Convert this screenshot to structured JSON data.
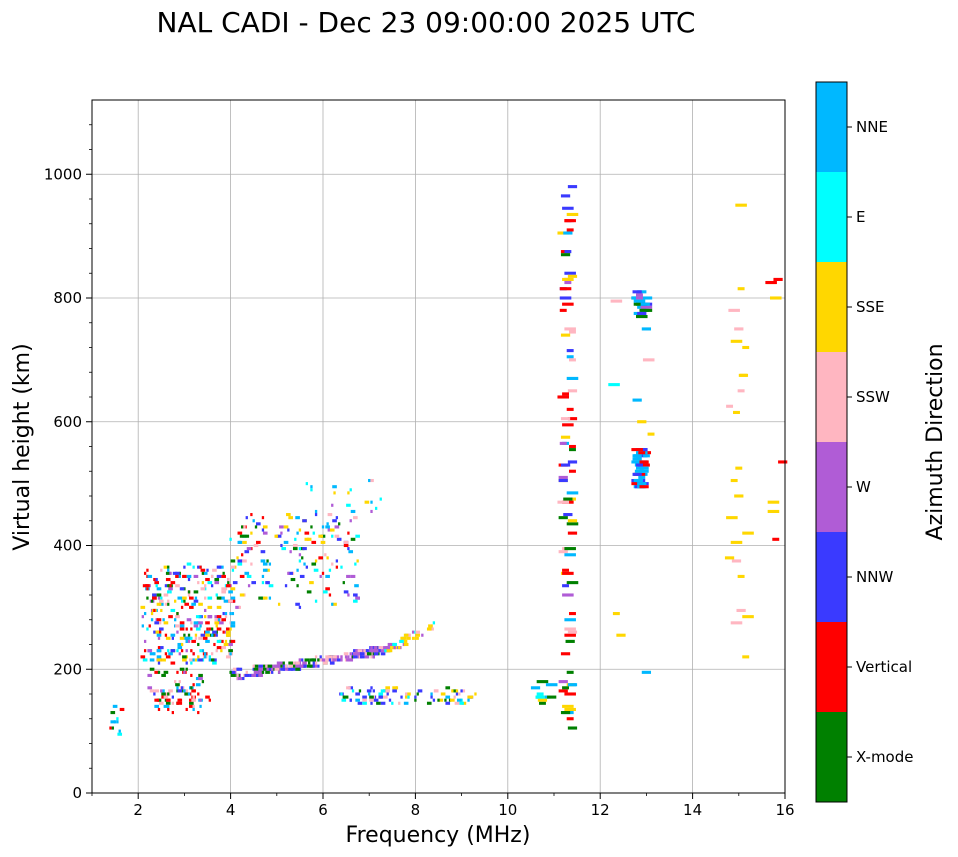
{
  "chart_data": {
    "type": "scatter",
    "title": "NAL CADI - Dec 23 09:00:00 2025 UTC",
    "xlabel": "Frequency (MHz)",
    "ylabel": "Virtual height (km)",
    "xlim": [
      1,
      16
    ],
    "ylim": [
      0,
      1120
    ],
    "xticks": [
      2,
      4,
      6,
      8,
      10,
      12,
      14,
      16
    ],
    "yticks": [
      0,
      200,
      400,
      600,
      800,
      1000
    ],
    "grid": true,
    "colorbar": {
      "label": "Azimuth Direction",
      "categories": [
        "X-mode",
        "Vertical",
        "NNW",
        "W",
        "SSW",
        "SSE",
        "E",
        "NNE"
      ],
      "colors": [
        "#008000",
        "#ff0000",
        "#3a3aff",
        "#b05cd6",
        "#ffb6c1",
        "#ffd700",
        "#00ffff",
        "#00b8ff"
      ]
    },
    "clusters": [
      {
        "name": "low-fan-red",
        "x": [
          2.3,
          3.6
        ],
        "y": [
          130,
          170
        ],
        "n": 50,
        "colors": [
          "Vertical",
          "SSW",
          "NNE",
          "Vertical",
          "X-mode"
        ]
      },
      {
        "name": "low-fan-mixed",
        "x": [
          2.2,
          3.4
        ],
        "y": [
          150,
          200
        ],
        "n": 40,
        "colors": [
          "NNE",
          "Vertical",
          "W",
          "SSW",
          "X-mode",
          "NNW"
        ]
      },
      {
        "name": "E-echo-edge",
        "x": [
          1.4,
          1.65
        ],
        "y": [
          90,
          145
        ],
        "n": 12,
        "colors": [
          "NNE",
          "Vertical",
          "E",
          "X-mode"
        ]
      },
      {
        "name": "F-cloud-mixed",
        "x": [
          2.1,
          4.1
        ],
        "y": [
          210,
          370
        ],
        "n": 340,
        "colors": [
          "Vertical",
          "Vertical",
          "NNE",
          "NNE",
          "W",
          "SSW",
          "X-mode",
          "NNW",
          "E",
          "SSE"
        ]
      },
      {
        "name": "F-cloud-upper",
        "x": [
          4.0,
          6.8
        ],
        "y": [
          300,
          450
        ],
        "n": 170,
        "colors": [
          "NNW",
          "W",
          "X-mode",
          "Vertical",
          "NNE",
          "SSW",
          "E",
          "SSE"
        ]
      },
      {
        "name": "F-sparse",
        "x": [
          5.6,
          7.3
        ],
        "y": [
          450,
          510
        ],
        "n": 18,
        "colors": [
          "SSW",
          "W",
          "SSE",
          "NNE",
          "E"
        ]
      },
      {
        "name": "F-trace-purple",
        "x": [
          4.0,
          7.3
        ],
        "y": [
          185,
          230
        ],
        "n": 240,
        "colors": [
          "W",
          "W",
          "NNW",
          "NNW",
          "SSW",
          "X-mode"
        ]
      },
      {
        "name": "F-trace-gold",
        "x": [
          7.3,
          8.4
        ],
        "y": [
          230,
          275
        ],
        "n": 50,
        "colors": [
          "SSE",
          "SSE",
          "W",
          "SSW",
          "E"
        ]
      },
      {
        "name": "lower-trace",
        "x": [
          6.4,
          9.3
        ],
        "y": [
          145,
          170
        ],
        "n": 90,
        "colors": [
          "NNW",
          "NNW",
          "E",
          "NNE",
          "X-mode",
          "SSE",
          "SSW"
        ]
      },
      {
        "name": "col-11.3",
        "x": [
          11.2,
          11.42
        ],
        "y": [
          100,
          990
        ],
        "n": 90,
        "colors": [
          "Vertical",
          "Vertical",
          "NNE",
          "NNW",
          "W",
          "SSE",
          "X-mode",
          "SSW"
        ]
      },
      {
        "name": "col-12.9",
        "x": [
          12.78,
          13.0
        ],
        "y": [
          490,
          555
        ],
        "n": 40,
        "colors": [
          "NNW",
          "NNE",
          "Vertical",
          "NNE"
        ]
      },
      {
        "name": "col-12.9-upper",
        "x": [
          12.78,
          13.0
        ],
        "y": [
          770,
          810
        ],
        "n": 20,
        "colors": [
          "W",
          "NNW",
          "X-mode",
          "NNE"
        ]
      },
      {
        "name": "col-15",
        "x": [
          14.8,
          15.2
        ],
        "y": [
          195,
          990
        ],
        "n": 24,
        "colors": [
          "SSE",
          "SSE",
          "SSW"
        ]
      },
      {
        "name": "col-16",
        "x": [
          15.7,
          16.0
        ],
        "y": [
          410,
          830
        ],
        "n": 8,
        "colors": [
          "SSE",
          "W",
          "Vertical"
        ]
      },
      {
        "name": "misc-10.8",
        "x": [
          10.6,
          10.95
        ],
        "y": [
          140,
          190
        ],
        "n": 12,
        "colors": [
          "SSE",
          "NNE",
          "X-mode",
          "E"
        ]
      },
      {
        "name": "misc-12.5",
        "x": [
          12.3,
          13.3
        ],
        "y": [
          85,
          815
        ],
        "n": 10,
        "colors": [
          "SSE",
          "E",
          "SSW",
          "NNE"
        ]
      }
    ]
  }
}
